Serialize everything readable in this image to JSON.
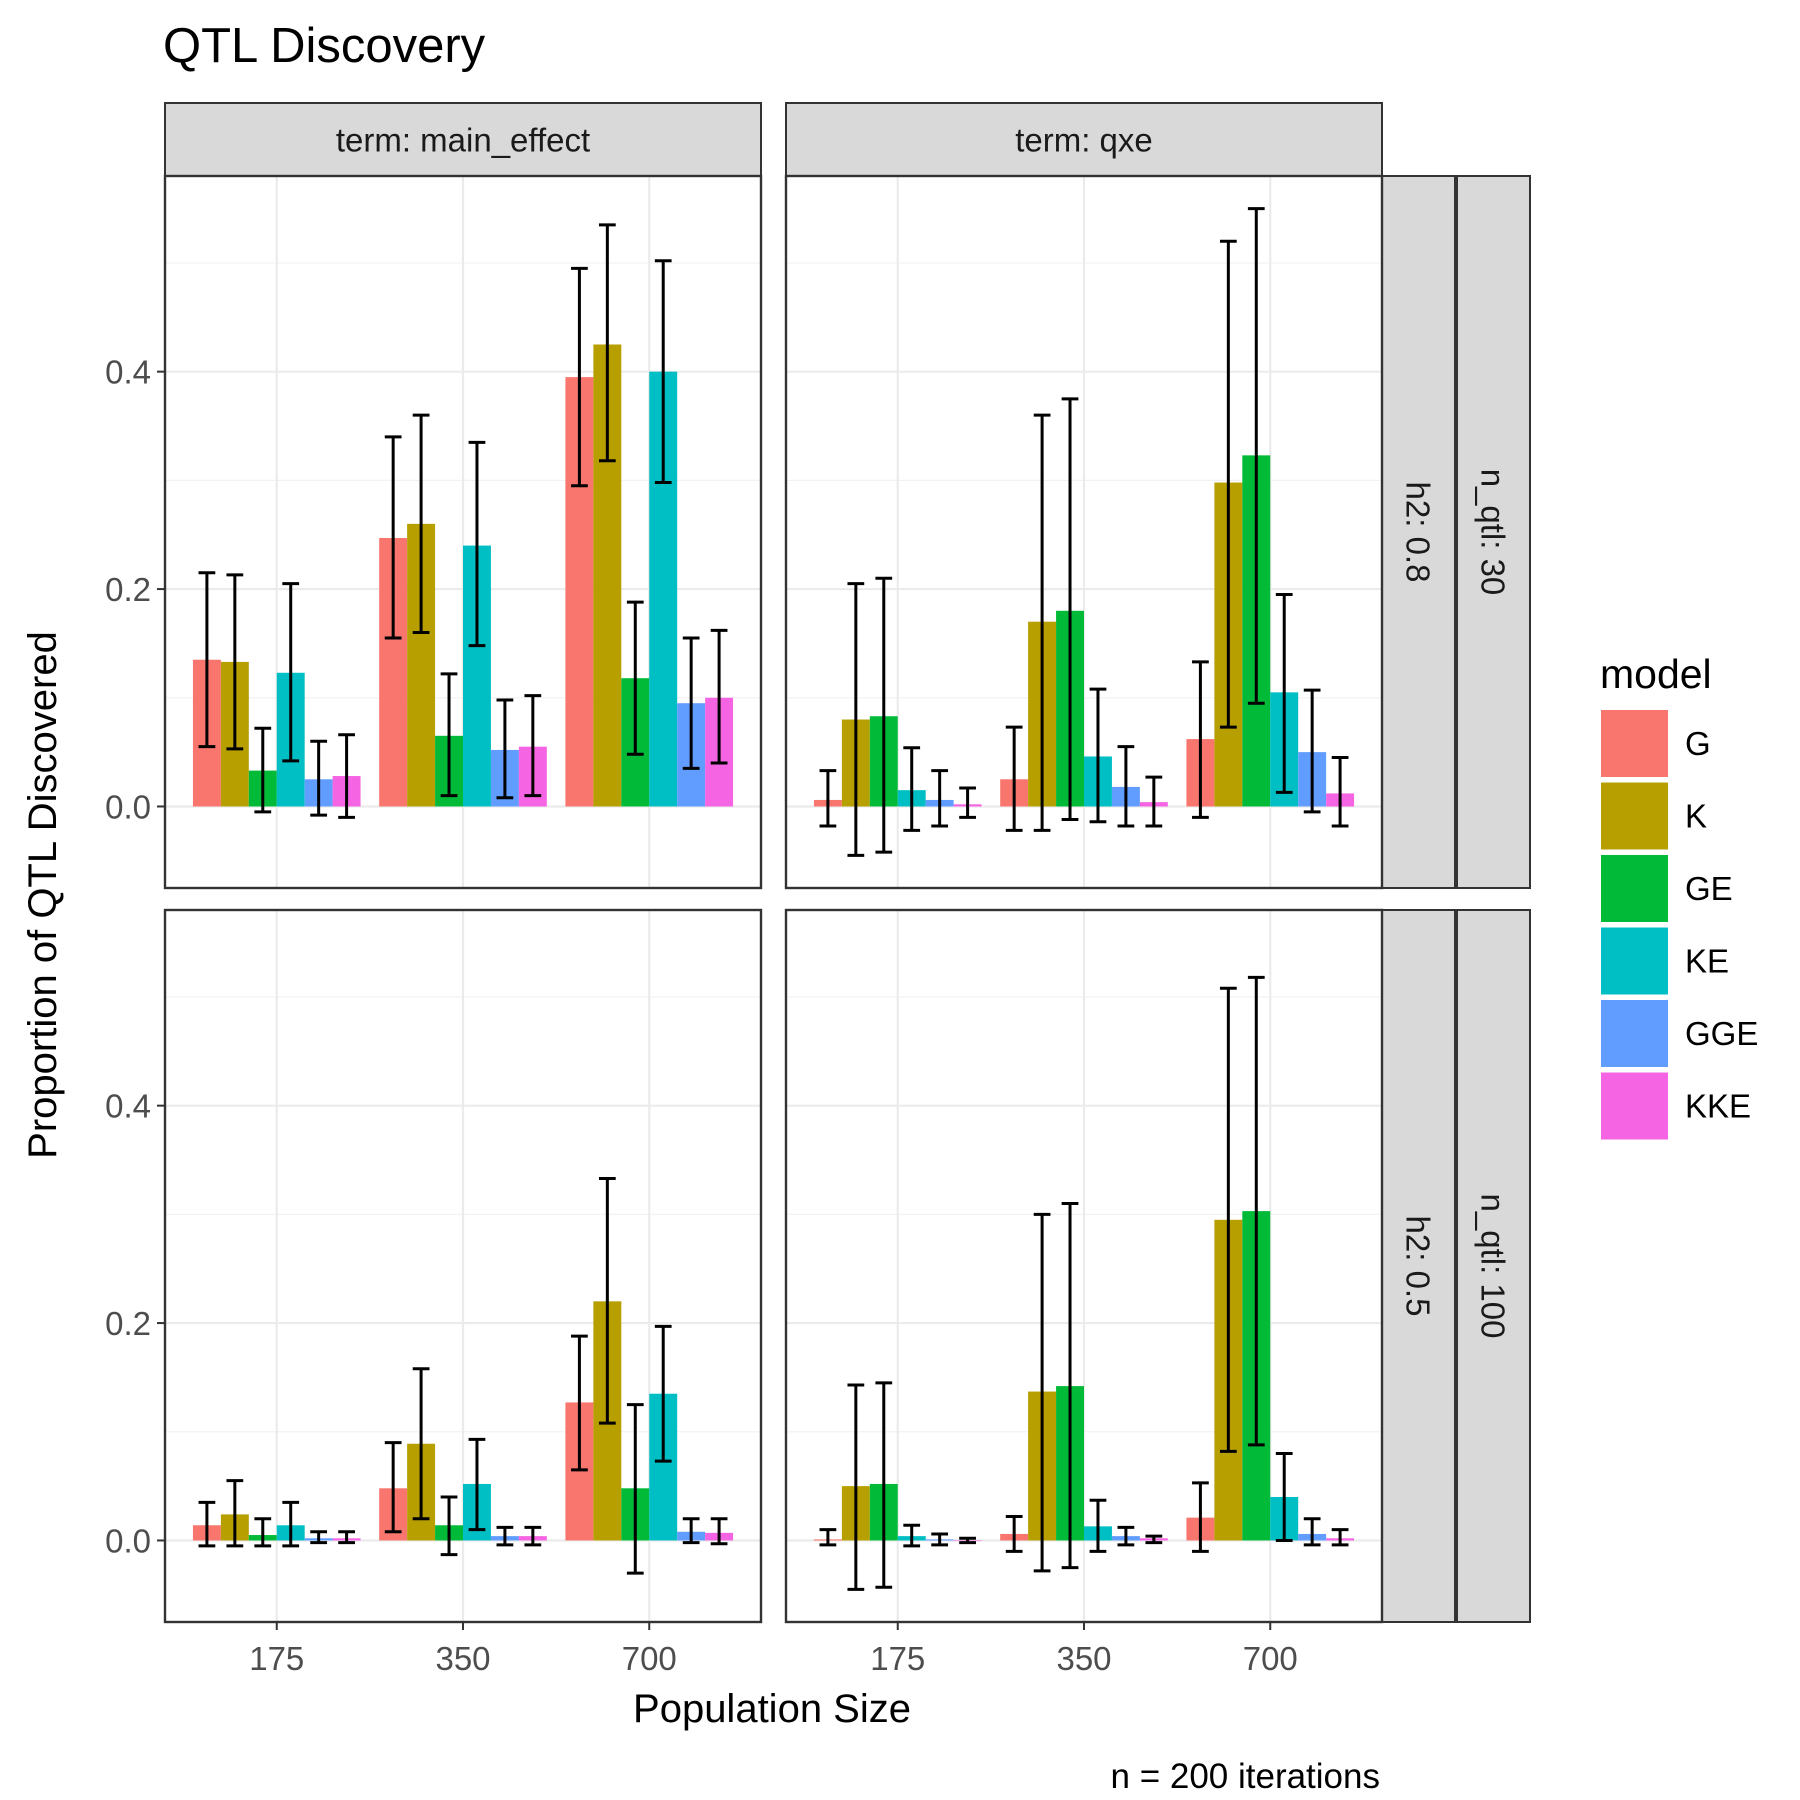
{
  "chart_data": {
    "type": "bar",
    "title": "QTL Discovery",
    "xlabel": "Population Size",
    "ylabel": "Proportion of QTL Discovered",
    "caption": "n = 200 iterations",
    "categories": [
      "175",
      "350",
      "700"
    ],
    "ylim": [
      -0.075,
      0.58
    ],
    "yticks": [
      0.0,
      0.2,
      0.4
    ],
    "ytick_labels": [
      "0.0",
      "0.2",
      "0.4"
    ],
    "grid": true,
    "legend": {
      "title": "model",
      "position": "right",
      "entries": [
        "G",
        "K",
        "GE",
        "KE",
        "GGE",
        "KKE"
      ]
    },
    "series_colors": {
      "G": "#F8766D",
      "K": "#B79F00",
      "GE": "#00BA38",
      "KE": "#00BFC4",
      "GGE": "#619CFF",
      "KKE": "#F564E3"
    },
    "column_strips": [
      "term: main_effect",
      "term: qxe"
    ],
    "row_strips": [
      [
        "h2: 0.8",
        "n_qtl: 30"
      ],
      [
        "h2: 0.5",
        "n_qtl: 100"
      ]
    ],
    "panels": [
      {
        "row": 0,
        "col": 0,
        "series": [
          {
            "name": "G",
            "values": [
              0.135,
              0.247,
              0.395
            ],
            "err_low": [
              0.055,
              0.155,
              0.295
            ],
            "err_high": [
              0.215,
              0.34,
              0.495
            ]
          },
          {
            "name": "K",
            "values": [
              0.133,
              0.26,
              0.425
            ],
            "err_low": [
              0.053,
              0.16,
              0.318
            ],
            "err_high": [
              0.213,
              0.36,
              0.535
            ]
          },
          {
            "name": "GE",
            "values": [
              0.033,
              0.065,
              0.118
            ],
            "err_low": [
              -0.005,
              0.01,
              0.048
            ],
            "err_high": [
              0.072,
              0.122,
              0.188
            ]
          },
          {
            "name": "KE",
            "values": [
              0.123,
              0.24,
              0.4
            ],
            "err_low": [
              0.042,
              0.148,
              0.298
            ],
            "err_high": [
              0.205,
              0.335,
              0.502
            ]
          },
          {
            "name": "GGE",
            "values": [
              0.025,
              0.052,
              0.095
            ],
            "err_low": [
              -0.008,
              0.008,
              0.035
            ],
            "err_high": [
              0.06,
              0.098,
              0.155
            ]
          },
          {
            "name": "KKE",
            "values": [
              0.028,
              0.055,
              0.1
            ],
            "err_low": [
              -0.01,
              0.01,
              0.04
            ],
            "err_high": [
              0.066,
              0.102,
              0.162
            ]
          }
        ]
      },
      {
        "row": 0,
        "col": 1,
        "series": [
          {
            "name": "G",
            "values": [
              0.006,
              0.025,
              0.062
            ],
            "err_low": [
              -0.018,
              -0.022,
              -0.01
            ],
            "err_high": [
              0.033,
              0.073,
              0.133
            ]
          },
          {
            "name": "K",
            "values": [
              0.08,
              0.17,
              0.298
            ],
            "err_low": [
              -0.045,
              -0.022,
              0.073
            ],
            "err_high": [
              0.205,
              0.36,
              0.52
            ]
          },
          {
            "name": "GE",
            "values": [
              0.083,
              0.18,
              0.323
            ],
            "err_low": [
              -0.042,
              -0.012,
              0.095
            ],
            "err_high": [
              0.21,
              0.375,
              0.55
            ]
          },
          {
            "name": "KE",
            "values": [
              0.015,
              0.046,
              0.105
            ],
            "err_low": [
              -0.022,
              -0.014,
              0.013
            ],
            "err_high": [
              0.054,
              0.108,
              0.195
            ]
          },
          {
            "name": "GGE",
            "values": [
              0.006,
              0.018,
              0.05
            ],
            "err_low": [
              -0.018,
              -0.018,
              -0.005
            ],
            "err_high": [
              0.033,
              0.055,
              0.107
            ]
          },
          {
            "name": "KKE",
            "values": [
              0.002,
              0.004,
              0.012
            ],
            "err_low": [
              -0.01,
              -0.018,
              -0.018
            ],
            "err_high": [
              0.017,
              0.027,
              0.045
            ]
          }
        ]
      },
      {
        "row": 1,
        "col": 0,
        "series": [
          {
            "name": "G",
            "values": [
              0.014,
              0.048,
              0.127
            ],
            "err_low": [
              -0.005,
              0.008,
              0.065
            ],
            "err_high": [
              0.035,
              0.09,
              0.188
            ]
          },
          {
            "name": "K",
            "values": [
              0.024,
              0.089,
              0.22
            ],
            "err_low": [
              -0.005,
              0.02,
              0.108
            ],
            "err_high": [
              0.055,
              0.158,
              0.333
            ]
          },
          {
            "name": "GE",
            "values": [
              0.005,
              0.014,
              0.048
            ],
            "err_low": [
              -0.005,
              -0.013,
              -0.03
            ],
            "err_high": [
              0.02,
              0.04,
              0.125
            ]
          },
          {
            "name": "KE",
            "values": [
              0.014,
              0.052,
              0.135
            ],
            "err_low": [
              -0.005,
              0.01,
              0.073
            ],
            "err_high": [
              0.035,
              0.093,
              0.197
            ]
          },
          {
            "name": "GGE",
            "values": [
              0.002,
              0.004,
              0.008
            ],
            "err_low": [
              -0.002,
              -0.004,
              -0.002
            ],
            "err_high": [
              0.008,
              0.012,
              0.02
            ]
          },
          {
            "name": "KKE",
            "values": [
              0.002,
              0.004,
              0.007
            ],
            "err_low": [
              -0.002,
              -0.004,
              -0.003
            ],
            "err_high": [
              0.008,
              0.012,
              0.02
            ]
          }
        ]
      },
      {
        "row": 1,
        "col": 1,
        "series": [
          {
            "name": "G",
            "values": [
              0.001,
              0.006,
              0.021
            ],
            "err_low": [
              -0.004,
              -0.01,
              -0.01
            ],
            "err_high": [
              0.01,
              0.022,
              0.053
            ]
          },
          {
            "name": "K",
            "values": [
              0.05,
              0.137,
              0.295
            ],
            "err_low": [
              -0.045,
              -0.028,
              0.082
            ],
            "err_high": [
              0.143,
              0.3,
              0.508
            ]
          },
          {
            "name": "GE",
            "values": [
              0.052,
              0.142,
              0.303
            ],
            "err_low": [
              -0.043,
              -0.025,
              0.088
            ],
            "err_high": [
              0.145,
              0.31,
              0.518
            ]
          },
          {
            "name": "KE",
            "values": [
              0.004,
              0.013,
              0.04
            ],
            "err_low": [
              -0.005,
              -0.01,
              0.0
            ],
            "err_high": [
              0.014,
              0.037,
              0.08
            ]
          },
          {
            "name": "GGE",
            "values": [
              0.001,
              0.004,
              0.006
            ],
            "err_low": [
              -0.004,
              -0.004,
              -0.004
            ],
            "err_high": [
              0.006,
              0.012,
              0.02
            ]
          },
          {
            "name": "KKE",
            "values": [
              0.0,
              0.002,
              0.002
            ],
            "err_low": [
              -0.002,
              -0.002,
              -0.004
            ],
            "err_high": [
              0.002,
              0.004,
              0.01
            ]
          }
        ]
      }
    ]
  }
}
